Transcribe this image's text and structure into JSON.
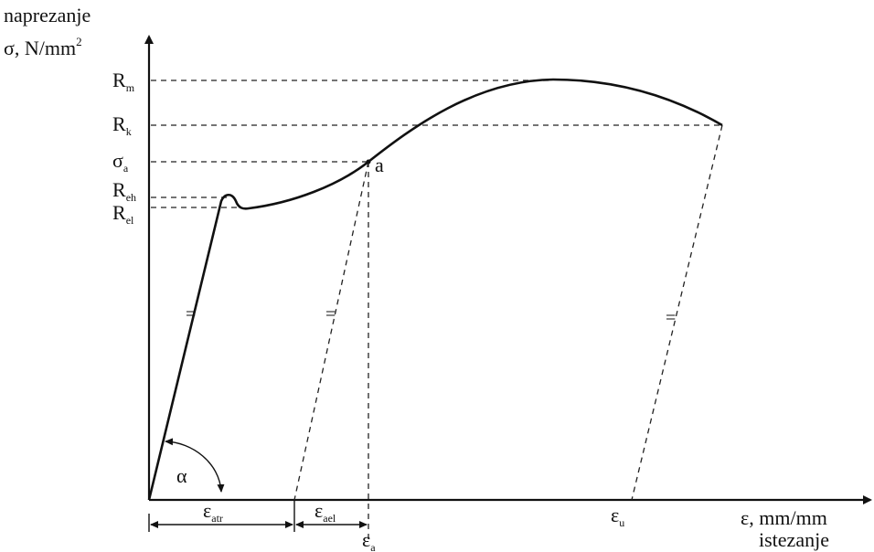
{
  "y_axis": {
    "title_line1": "naprezanje",
    "title_line2_main": "σ, N/mm",
    "title_line2_sup": "2"
  },
  "x_axis": {
    "title_line1": "ε, mm/mm",
    "title_line2": "istezanje"
  },
  "stress_levels": [
    {
      "main": "R",
      "sub": "m"
    },
    {
      "main": "R",
      "sub": "k"
    },
    {
      "main": "σ",
      "sub": "a"
    },
    {
      "main": "R",
      "sub": "eh"
    },
    {
      "main": "R",
      "sub": "el"
    }
  ],
  "point_label": "a",
  "angle_label": "α",
  "strain_labels": {
    "plastic": {
      "main": "ε",
      "sub": "atr"
    },
    "elastic": {
      "main": "ε",
      "sub": "ael"
    },
    "total": {
      "main": "ε",
      "sub": "a"
    },
    "ultimate": {
      "main": "ε",
      "sub": "u"
    }
  },
  "parallel_mark": "="
}
